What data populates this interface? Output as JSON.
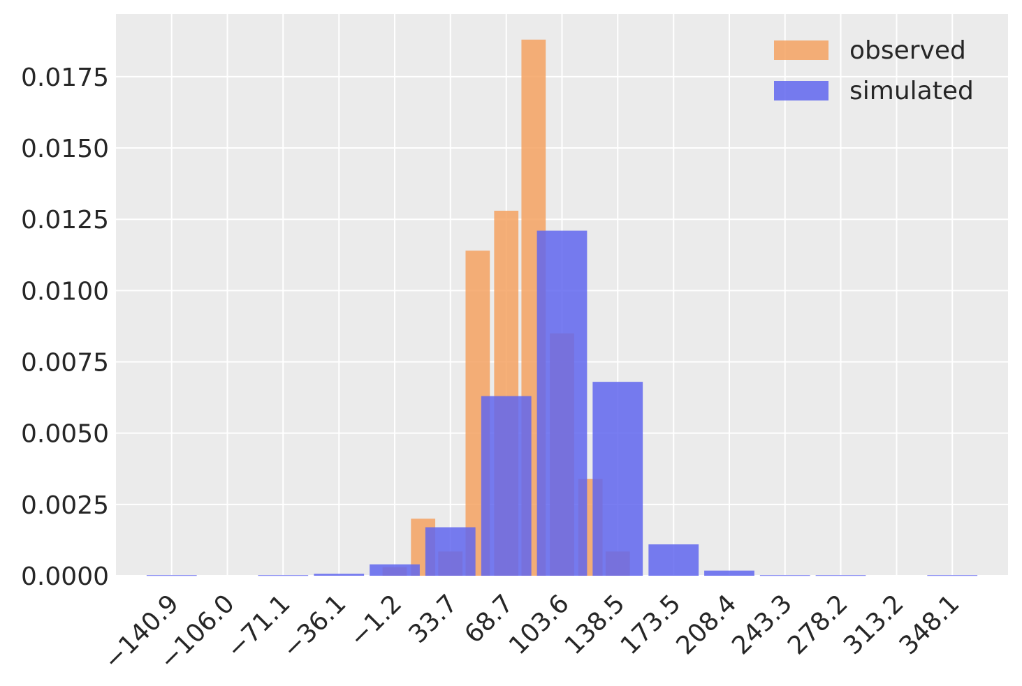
{
  "chart_data": {
    "type": "bar",
    "title": "",
    "xlabel": "",
    "ylabel": "",
    "xlim": [
      -175.8,
      383.0
    ],
    "ylim": [
      0,
      0.0197
    ],
    "grid": true,
    "legend_position": "top-right",
    "x_ticks": [
      "−140.9",
      "−106.0",
      "−71.1",
      "−36.1",
      "−1.2",
      "33.7",
      "68.7",
      "103.6",
      "138.5",
      "173.5",
      "208.4",
      "243.3",
      "278.2",
      "313.2",
      "348.1"
    ],
    "y_ticks": [
      "0.0000",
      "0.0025",
      "0.0050",
      "0.0075",
      "0.0100",
      "0.0125",
      "0.0150",
      "0.0175"
    ],
    "series": [
      {
        "name": "observed",
        "color": "#f4a261",
        "bar_width": 15.2,
        "bars": [
          {
            "x": 16.6,
            "value": 0.002
          },
          {
            "x": 33.7,
            "value": 0.00085
          },
          {
            "x": 50.8,
            "value": 0.0114
          },
          {
            "x": 68.7,
            "value": 0.0128
          },
          {
            "x": 85.8,
            "value": 0.0188
          },
          {
            "x": 103.6,
            "value": 0.0085
          },
          {
            "x": 121.4,
            "value": 0.0034
          },
          {
            "x": 138.5,
            "value": 0.00085
          },
          {
            "x": -1.2,
            "value": 0.0003
          }
        ]
      },
      {
        "name": "simulated",
        "color": "#6066ee",
        "bar_width": 31.4,
        "bars": [
          {
            "x": -140.9,
            "value": 2e-05
          },
          {
            "x": -71.1,
            "value": 2e-05
          },
          {
            "x": -36.1,
            "value": 7e-05
          },
          {
            "x": -1.2,
            "value": 0.0004
          },
          {
            "x": 33.7,
            "value": 0.0017
          },
          {
            "x": 68.7,
            "value": 0.0063
          },
          {
            "x": 103.6,
            "value": 0.0121
          },
          {
            "x": 138.5,
            "value": 0.0068
          },
          {
            "x": 173.5,
            "value": 0.0011
          },
          {
            "x": 208.4,
            "value": 0.00018
          },
          {
            "x": 243.3,
            "value": 2e-05
          },
          {
            "x": 278.2,
            "value": 2e-05
          },
          {
            "x": 348.1,
            "value": 2e-05
          }
        ]
      }
    ]
  }
}
